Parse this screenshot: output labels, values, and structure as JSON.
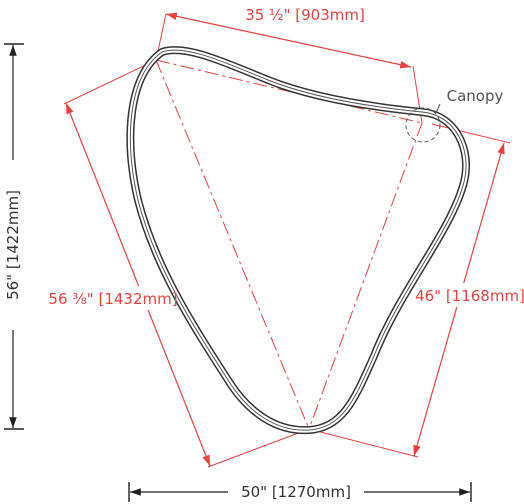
{
  "dimensions": {
    "top_edge": "35 ½\" [903mm]",
    "left_edge": "56 ⅜\" [1432mm]",
    "right_edge": "46\" [1168mm]",
    "overall_height": "56\" [1422mm]",
    "overall_width": "50\" [1270mm]"
  },
  "callouts": {
    "canopy": "Canopy"
  },
  "colors": {
    "dimension": "#e8413e",
    "outline": "#333333",
    "overall": "#222222"
  }
}
